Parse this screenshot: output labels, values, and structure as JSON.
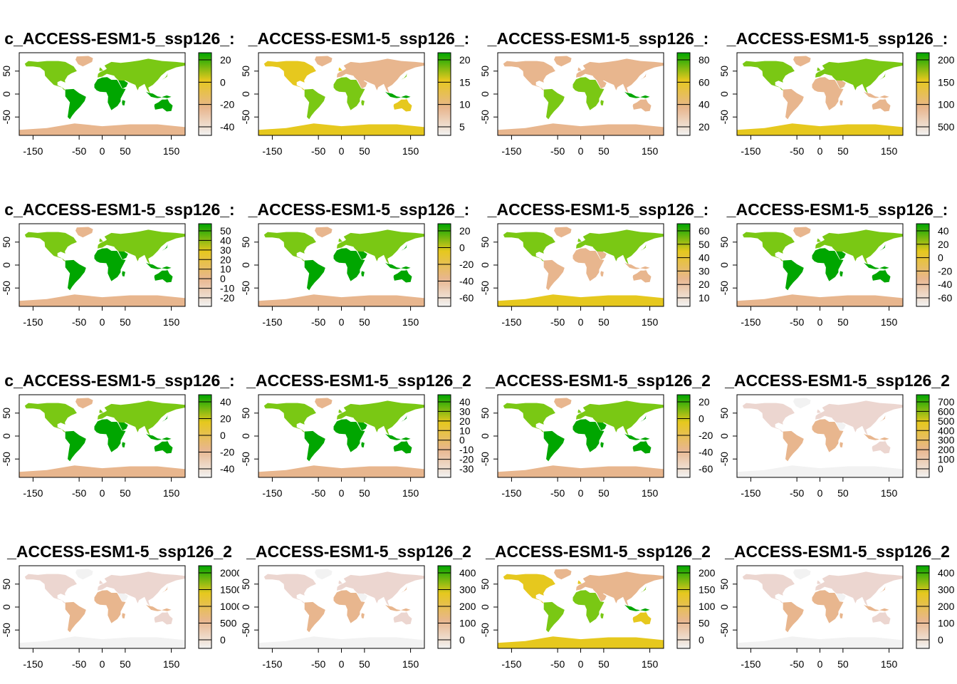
{
  "colors": {
    "low": "#f2f2f2",
    "mid_low": "#e8b68e",
    "mid": "#e6c81e",
    "mid_high": "#7ac814",
    "high": "#00a600",
    "ocean": "#ffffff",
    "frame": "#000000"
  },
  "x_axis": {
    "ticks": [
      -150,
      -50,
      0,
      50,
      150
    ]
  },
  "y_axis": {
    "ticks": [
      50,
      0,
      -50
    ]
  },
  "panels": [
    {
      "title": "c_ACCESS-ESM1-5_ssp126_:",
      "legend_ticks": [
        "20",
        "0",
        "-20",
        "-40"
      ],
      "style": "mid_high"
    },
    {
      "title": "_ACCESS-ESM1-5_ssp126_:",
      "legend_ticks": [
        "20",
        "15",
        "10",
        "5"
      ],
      "style": "mixed"
    },
    {
      "title": "_ACCESS-ESM1-5_ssp126_:",
      "legend_ticks": [
        "80",
        "60",
        "40",
        "20"
      ],
      "style": "tropics"
    },
    {
      "title": "_ACCESS-ESM1-5_ssp126_:",
      "legend_ticks": [
        "200",
        "150",
        "100",
        "500"
      ],
      "style": "north"
    },
    {
      "title": "c_ACCESS-ESM1-5_ssp126_:",
      "legend_ticks": [
        "50",
        "40",
        "30",
        "20",
        "10",
        "0",
        "-10",
        "-20"
      ],
      "style": "high"
    },
    {
      "title": "_ACCESS-ESM1-5_ssp126_:",
      "legend_ticks": [
        "20",
        "0",
        "-20",
        "-40",
        "-60"
      ],
      "style": "high"
    },
    {
      "title": "_ACCESS-ESM1-5_ssp126_:",
      "legend_ticks": [
        "60",
        "50",
        "40",
        "30",
        "20",
        "10"
      ],
      "style": "north"
    },
    {
      "title": "_ACCESS-ESM1-5_ssp126_:",
      "legend_ticks": [
        "40",
        "20",
        "0",
        "-20",
        "-40",
        "-60"
      ],
      "style": "high"
    },
    {
      "title": "c_ACCESS-ESM1-5_ssp126_:",
      "legend_ticks": [
        "40",
        "20",
        "0",
        "-20",
        "-40"
      ],
      "style": "high"
    },
    {
      "title": "_ACCESS-ESM1-5_ssp126_2",
      "legend_ticks": [
        "40",
        "30",
        "20",
        "10",
        "0",
        "-10",
        "-20",
        "-30"
      ],
      "style": "high"
    },
    {
      "title": "_ACCESS-ESM1-5_ssp126_2",
      "legend_ticks": [
        "20",
        "0",
        "-20",
        "-40",
        "-60"
      ],
      "style": "high"
    },
    {
      "title": "_ACCESS-ESM1-5_ssp126_2",
      "legend_ticks": [
        "700",
        "600",
        "500",
        "400",
        "300",
        "200",
        "100",
        "0"
      ],
      "style": "low"
    },
    {
      "title": "_ACCESS-ESM1-5_ssp126_2",
      "legend_ticks": [
        "2000",
        "1500",
        "1000",
        "500",
        "0"
      ],
      "style": "low"
    },
    {
      "title": "_ACCESS-ESM1-5_ssp126_2",
      "legend_ticks": [
        "400",
        "300",
        "200",
        "100",
        "0"
      ],
      "style": "low"
    },
    {
      "title": "_ACCESS-ESM1-5_ssp126_2",
      "legend_ticks": [
        "200",
        "150",
        "100",
        "50",
        "0"
      ],
      "style": "mixed"
    },
    {
      "title": "_ACCESS-ESM1-5_ssp126_2",
      "legend_ticks": [
        "400",
        "300",
        "200",
        "100",
        "0"
      ],
      "style": "low"
    }
  ]
}
